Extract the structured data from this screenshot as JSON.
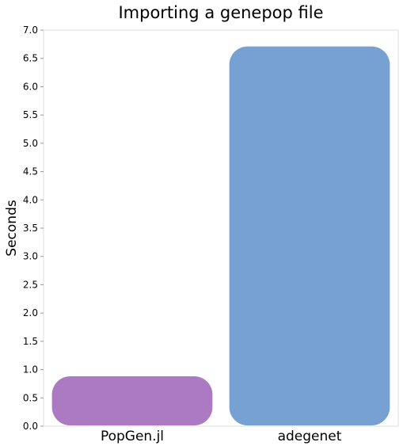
{
  "chart_data": {
    "type": "bar",
    "title": "Importing a genepop file",
    "xlabel": "",
    "ylabel": "Seconds",
    "categories": [
      "PopGen.jl",
      "adegenet"
    ],
    "values": [
      0.91,
      6.74
    ],
    "colors": [
      "#ab7ac2",
      "#77a1d2"
    ],
    "ylim": [
      0,
      7
    ],
    "yticks": [
      "0.0",
      "0.5",
      "1.0",
      "1.5",
      "2.0",
      "2.5",
      "3.0",
      "3.5",
      "4.0",
      "4.5",
      "5.0",
      "5.5",
      "6.0",
      "6.5",
      "7.0"
    ],
    "grid": false,
    "legend": "none"
  }
}
